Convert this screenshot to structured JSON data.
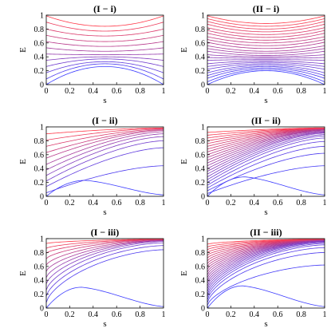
{
  "chart_data": [
    {
      "type": "line",
      "title": "(I − i)",
      "xlabel": "s",
      "ylabel": "E",
      "xlim": [
        0,
        1
      ],
      "ylim": [
        0,
        1
      ],
      "x_ticks": [
        "0",
        "0.2",
        "0.4",
        "0.6",
        "0.8",
        "1"
      ],
      "y_ticks": [
        "0",
        "0.2",
        "0.4",
        "0.6",
        "0.8",
        "1"
      ],
      "family": "parabolic",
      "n_curves": 12,
      "x": [
        0,
        0.5,
        1
      ],
      "series": [
        {
          "values": [
            0.0,
            0.26,
            0.0
          ]
        },
        {
          "values": [
            0.08,
            0.3,
            0.08
          ]
        },
        {
          "values": [
            0.17,
            0.33,
            0.17
          ]
        },
        {
          "values": [
            0.26,
            0.37,
            0.26
          ]
        },
        {
          "values": [
            0.35,
            0.4,
            0.35
          ]
        },
        {
          "values": [
            0.44,
            0.43,
            0.44
          ]
        },
        {
          "values": [
            0.53,
            0.48,
            0.53
          ]
        },
        {
          "values": [
            0.62,
            0.55,
            0.62
          ]
        },
        {
          "values": [
            0.71,
            0.62,
            0.71
          ]
        },
        {
          "values": [
            0.8,
            0.7,
            0.8
          ]
        },
        {
          "values": [
            0.9,
            0.77,
            0.9
          ]
        },
        {
          "values": [
            0.99,
            0.84,
            0.99
          ]
        }
      ]
    },
    {
      "type": "line",
      "title": "(II − i)",
      "xlabel": "s",
      "ylabel": "E",
      "xlim": [
        0,
        1
      ],
      "ylim": [
        0,
        1
      ],
      "x_ticks": [
        "0",
        "0.2",
        "0.4",
        "0.6",
        "0.8",
        "1"
      ],
      "y_ticks": [
        "0",
        "0.2",
        "0.4",
        "0.6",
        "0.8",
        "1"
      ],
      "family": "parabolic",
      "n_curves": 24,
      "x": [
        0,
        0.5,
        1
      ],
      "series": [
        {
          "values": [
            0.0,
            0.2,
            0.0
          ]
        },
        {
          "values": [
            0.04,
            0.22,
            0.04
          ]
        },
        {
          "values": [
            0.09,
            0.24,
            0.09
          ]
        },
        {
          "values": [
            0.13,
            0.26,
            0.13
          ]
        },
        {
          "values": [
            0.17,
            0.28,
            0.17
          ]
        },
        {
          "values": [
            0.22,
            0.3,
            0.22
          ]
        },
        {
          "values": [
            0.26,
            0.32,
            0.26
          ]
        },
        {
          "values": [
            0.3,
            0.34,
            0.3
          ]
        },
        {
          "values": [
            0.35,
            0.36,
            0.35
          ]
        },
        {
          "values": [
            0.39,
            0.38,
            0.39
          ]
        },
        {
          "values": [
            0.43,
            0.4,
            0.43
          ]
        },
        {
          "values": [
            0.48,
            0.42,
            0.48
          ]
        },
        {
          "values": [
            0.52,
            0.45,
            0.52
          ]
        },
        {
          "values": [
            0.56,
            0.48,
            0.56
          ]
        },
        {
          "values": [
            0.61,
            0.52,
            0.61
          ]
        },
        {
          "values": [
            0.65,
            0.56,
            0.65
          ]
        },
        {
          "values": [
            0.69,
            0.6,
            0.69
          ]
        },
        {
          "values": [
            0.74,
            0.64,
            0.74
          ]
        },
        {
          "values": [
            0.78,
            0.68,
            0.78
          ]
        },
        {
          "values": [
            0.82,
            0.72,
            0.82
          ]
        },
        {
          "values": [
            0.87,
            0.76,
            0.87
          ]
        },
        {
          "values": [
            0.91,
            0.8,
            0.91
          ]
        },
        {
          "values": [
            0.95,
            0.84,
            0.95
          ]
        },
        {
          "values": [
            0.99,
            0.88,
            0.99
          ]
        }
      ]
    },
    {
      "type": "line",
      "title": "(I − ii)",
      "xlabel": "s",
      "ylabel": "E",
      "xlim": [
        0,
        1
      ],
      "ylim": [
        0,
        1
      ],
      "x_ticks": [
        "0",
        "0.2",
        "0.4",
        "0.6",
        "0.8",
        "1"
      ],
      "y_ticks": [
        "0",
        "0.2",
        "0.4",
        "0.6",
        "0.8",
        "1"
      ],
      "family": "converging",
      "n_curves": 12,
      "converge_to": 0.98,
      "x": [
        0,
        1
      ],
      "series": [
        {
          "values": [
            0.0,
            0.02
          ],
          "peak": [
            0.33,
            0.23
          ]
        },
        {
          "values": [
            0.05,
            0.44
          ]
        },
        {
          "values": [
            0.14,
            0.7
          ]
        },
        {
          "values": [
            0.22,
            0.8
          ]
        },
        {
          "values": [
            0.3,
            0.86
          ]
        },
        {
          "values": [
            0.38,
            0.9
          ]
        },
        {
          "values": [
            0.46,
            0.93
          ]
        },
        {
          "values": [
            0.55,
            0.95
          ]
        },
        {
          "values": [
            0.63,
            0.96
          ]
        },
        {
          "values": [
            0.72,
            0.97
          ]
        },
        {
          "values": [
            0.81,
            0.98
          ]
        },
        {
          "values": [
            0.9,
            0.985
          ]
        }
      ]
    },
    {
      "type": "line",
      "title": "(II − ii)",
      "xlabel": "s",
      "ylabel": "E",
      "xlim": [
        0,
        1
      ],
      "ylim": [
        0,
        1
      ],
      "x_ticks": [
        "0",
        "0.2",
        "0.4",
        "0.6",
        "0.8",
        "1"
      ],
      "y_ticks": [
        "0",
        "0.2",
        "0.4",
        "0.6",
        "0.8",
        "1"
      ],
      "family": "converging",
      "n_curves": 24,
      "converge_to": 0.985,
      "x": [
        0,
        1
      ],
      "series": [
        {
          "values": [
            0.0,
            0.02
          ],
          "peak": [
            0.32,
            0.28
          ]
        },
        {
          "values": [
            0.04,
            0.44
          ]
        },
        {
          "values": [
            0.08,
            0.62
          ]
        },
        {
          "values": [
            0.12,
            0.72
          ]
        },
        {
          "values": [
            0.16,
            0.79
          ]
        },
        {
          "values": [
            0.2,
            0.84
          ]
        },
        {
          "values": [
            0.24,
            0.87
          ]
        },
        {
          "values": [
            0.28,
            0.89
          ]
        },
        {
          "values": [
            0.32,
            0.91
          ]
        },
        {
          "values": [
            0.36,
            0.92
          ]
        },
        {
          "values": [
            0.4,
            0.93
          ]
        },
        {
          "values": [
            0.44,
            0.94
          ]
        },
        {
          "values": [
            0.48,
            0.95
          ]
        },
        {
          "values": [
            0.52,
            0.955
          ]
        },
        {
          "values": [
            0.56,
            0.96
          ]
        },
        {
          "values": [
            0.6,
            0.965
          ]
        },
        {
          "values": [
            0.64,
            0.97
          ]
        },
        {
          "values": [
            0.68,
            0.972
          ]
        },
        {
          "values": [
            0.72,
            0.975
          ]
        },
        {
          "values": [
            0.76,
            0.978
          ]
        },
        {
          "values": [
            0.8,
            0.98
          ]
        },
        {
          "values": [
            0.84,
            0.982
          ]
        },
        {
          "values": [
            0.88,
            0.984
          ]
        },
        {
          "values": [
            0.92,
            0.986
          ]
        }
      ]
    },
    {
      "type": "line",
      "title": "(I − iii)",
      "xlabel": "s",
      "ylabel": "E",
      "xlim": [
        0,
        1
      ],
      "ylim": [
        0,
        1
      ],
      "x_ticks": [
        "0",
        "0.2",
        "0.4",
        "0.6",
        "0.8",
        "1"
      ],
      "y_ticks": [
        "0",
        "0.2",
        "0.4",
        "0.6",
        "0.8",
        "1"
      ],
      "family": "converging_steep",
      "n_curves": 12,
      "converge_to": 0.99,
      "x": [
        0,
        1
      ],
      "series": [
        {
          "values": [
            0.0,
            0.02
          ],
          "peak": [
            0.3,
            0.3
          ]
        },
        {
          "values": [
            0.08,
            0.84
          ]
        },
        {
          "values": [
            0.17,
            0.9
          ]
        },
        {
          "values": [
            0.26,
            0.94
          ]
        },
        {
          "values": [
            0.35,
            0.96
          ]
        },
        {
          "values": [
            0.44,
            0.97
          ]
        },
        {
          "values": [
            0.53,
            0.975
          ]
        },
        {
          "values": [
            0.62,
            0.98
          ]
        },
        {
          "values": [
            0.71,
            0.985
          ]
        },
        {
          "values": [
            0.79,
            0.988
          ]
        },
        {
          "values": [
            0.86,
            0.99
          ]
        },
        {
          "values": [
            0.93,
            0.992
          ]
        }
      ]
    },
    {
      "type": "line",
      "title": "(II − iii)",
      "xlabel": "s",
      "ylabel": "E",
      "xlim": [
        0,
        1
      ],
      "ylim": [
        0,
        1
      ],
      "x_ticks": [
        "0",
        "0.2",
        "0.4",
        "0.6",
        "0.8",
        "1"
      ],
      "y_ticks": [
        "0",
        "0.2",
        "0.4",
        "0.6",
        "0.8",
        "1"
      ],
      "family": "converging_steep",
      "n_curves": 24,
      "converge_to": 0.99,
      "x": [
        0,
        1
      ],
      "series": [
        {
          "values": [
            0.0,
            0.02
          ],
          "peak": [
            0.3,
            0.32
          ]
        },
        {
          "values": [
            0.04,
            0.62
          ]
        },
        {
          "values": [
            0.08,
            0.8
          ]
        },
        {
          "values": [
            0.12,
            0.87
          ]
        },
        {
          "values": [
            0.16,
            0.91
          ]
        },
        {
          "values": [
            0.2,
            0.93
          ]
        },
        {
          "values": [
            0.24,
            0.945
          ]
        },
        {
          "values": [
            0.28,
            0.955
          ]
        },
        {
          "values": [
            0.32,
            0.962
          ]
        },
        {
          "values": [
            0.36,
            0.968
          ]
        },
        {
          "values": [
            0.4,
            0.972
          ]
        },
        {
          "values": [
            0.44,
            0.976
          ]
        },
        {
          "values": [
            0.48,
            0.979
          ]
        },
        {
          "values": [
            0.52,
            0.981
          ]
        },
        {
          "values": [
            0.56,
            0.983
          ]
        },
        {
          "values": [
            0.6,
            0.985
          ]
        },
        {
          "values": [
            0.64,
            0.986
          ]
        },
        {
          "values": [
            0.68,
            0.987
          ]
        },
        {
          "values": [
            0.72,
            0.988
          ]
        },
        {
          "values": [
            0.76,
            0.989
          ]
        },
        {
          "values": [
            0.8,
            0.99
          ]
        },
        {
          "values": [
            0.84,
            0.991
          ]
        },
        {
          "values": [
            0.88,
            0.992
          ]
        },
        {
          "values": [
            0.92,
            0.993
          ]
        }
      ]
    }
  ],
  "colors": {
    "low": "#3b3bff",
    "high": "#ff3b4b",
    "frame": "#000000"
  }
}
